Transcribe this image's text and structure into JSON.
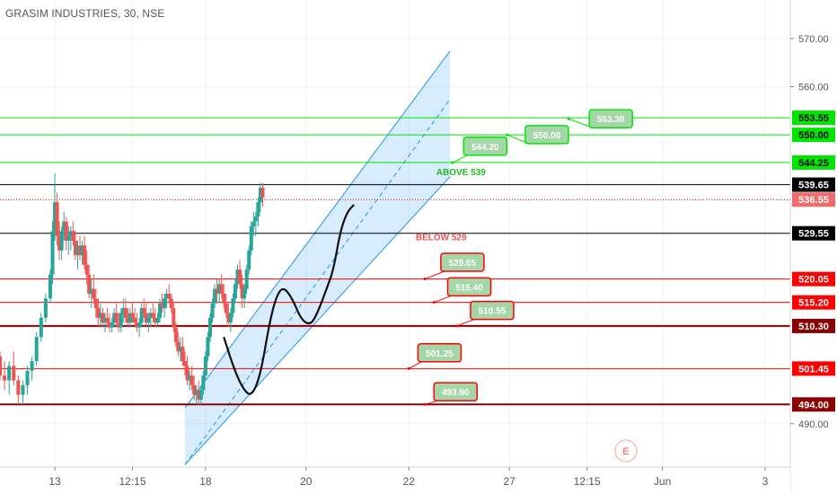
{
  "chart_data": {
    "type": "candlestick",
    "title": "GRASIM INDUSTRIES, 30, NSE",
    "ylim": [
      481,
      578
    ],
    "y_ticks": [
      490,
      560,
      570
    ],
    "x_ticks": [
      {
        "label": "13",
        "x": 24
      },
      {
        "label": "12:15",
        "x": 58
      },
      {
        "label": "18",
        "x": 90
      },
      {
        "label": "20",
        "x": 134
      },
      {
        "label": "22",
        "x": 179
      },
      {
        "label": "27",
        "x": 223
      },
      {
        "label": "12:15",
        "x": 257
      },
      {
        "label": "Jun",
        "x": 290
      },
      {
        "label": "3",
        "x": 335
      }
    ],
    "x_range": [
      0,
      346
    ],
    "colors": {
      "up": "#26a69a",
      "down": "#ef5350",
      "channel": "#2196f3",
      "green_line": "#00e600",
      "red_line": "#ff0000",
      "dark_red_line": "#8b0000",
      "label_fill": "#a5d6a7"
    },
    "horizontal_levels": [
      {
        "value": 553.55,
        "label": "553.55",
        "style": "green"
      },
      {
        "value": 550.0,
        "label": "550.00",
        "style": "green"
      },
      {
        "value": 544.25,
        "label": "544.25",
        "style": "green"
      },
      {
        "value": 539.65,
        "label": "539.65",
        "style": "black"
      },
      {
        "value": 536.55,
        "label": "536.55",
        "style": "dotted-red"
      },
      {
        "value": 529.55,
        "label": "529.55",
        "style": "black"
      },
      {
        "value": 520.05,
        "label": "520.05",
        "style": "red"
      },
      {
        "value": 515.2,
        "label": "515.20",
        "style": "red"
      },
      {
        "value": 510.3,
        "label": "510.30",
        "style": "darkred"
      },
      {
        "value": 501.45,
        "label": "501.45",
        "style": "red"
      },
      {
        "value": 494.0,
        "label": "494.00",
        "style": "darkred"
      }
    ],
    "text_annotations": [
      {
        "text": "ABOVE 539",
        "x": 191,
        "y": 541.6,
        "color": "#22bb22"
      },
      {
        "text": "BELOW 529",
        "x": 182,
        "y": 528.1,
        "color": "#ef5350"
      }
    ],
    "callouts": [
      {
        "label": "553.30",
        "x": 258,
        "y": 555.2,
        "anchor_x": 249,
        "anchor_y": 553.3,
        "border": "green"
      },
      {
        "label": "550.00",
        "x": 230,
        "y": 551.9,
        "anchor_x": 222,
        "anchor_y": 550.0,
        "border": "green"
      },
      {
        "label": "544.20",
        "x": 203,
        "y": 549.5,
        "anchor_x": 198,
        "anchor_y": 544.2,
        "border": "green"
      },
      {
        "label": "520.05",
        "x": 193,
        "y": 525.4,
        "anchor_x": 186,
        "anchor_y": 520.05,
        "border": "red"
      },
      {
        "label": "515.40",
        "x": 196,
        "y": 520.3,
        "anchor_x": 190,
        "anchor_y": 515.2,
        "border": "red"
      },
      {
        "label": "510.55",
        "x": 206,
        "y": 515.4,
        "anchor_x": 200,
        "anchor_y": 510.3,
        "border": "red"
      },
      {
        "label": "501.25",
        "x": 183,
        "y": 506.6,
        "anchor_x": 179,
        "anchor_y": 501.45,
        "border": "red"
      },
      {
        "label": "493.90",
        "x": 190,
        "y": 498.5,
        "anchor_x": 186,
        "anchor_y": 494.0,
        "border": "red"
      }
    ],
    "channel": {
      "lower_line": [
        [
          81,
          481.5
        ],
        [
          197,
          541.3
        ]
      ],
      "upper_line": [
        [
          81,
          493.3
        ],
        [
          197,
          567.4
        ]
      ],
      "mid_line": [
        [
          81,
          481.5
        ],
        [
          197,
          557.4
        ]
      ]
    },
    "trend_curve": [
      [
        98,
        508
      ],
      [
        102,
        502
      ],
      [
        106,
        497.5
      ],
      [
        110,
        495.5
      ],
      [
        114,
        500
      ],
      [
        118,
        511
      ],
      [
        121,
        516.5
      ],
      [
        124,
        518.5
      ],
      [
        128,
        516
      ],
      [
        132,
        511.5
      ],
      [
        136,
        510.5
      ],
      [
        139,
        513
      ],
      [
        143,
        518
      ],
      [
        146,
        522
      ],
      [
        149,
        530
      ],
      [
        152,
        534
      ],
      [
        155,
        535.5
      ]
    ],
    "candles": [
      [
        0,
        504,
        505,
        499,
        500
      ],
      [
        2,
        500,
        503,
        497,
        499
      ],
      [
        4,
        499,
        503,
        496,
        502
      ],
      [
        6,
        502,
        505,
        498,
        499
      ],
      [
        8,
        499,
        500,
        494,
        496
      ],
      [
        10,
        496,
        499,
        494,
        498
      ],
      [
        12,
        498,
        502,
        496,
        501
      ],
      [
        14,
        501,
        504,
        499,
        503
      ],
      [
        16,
        503,
        509,
        502,
        508
      ],
      [
        18,
        508,
        513,
        507,
        512
      ],
      [
        20,
        512,
        517,
        511,
        516
      ],
      [
        22,
        516,
        522,
        515,
        521
      ],
      [
        23,
        521,
        532,
        519,
        530
      ],
      [
        24,
        530,
        542,
        528,
        536
      ],
      [
        25,
        536,
        538,
        527,
        529
      ],
      [
        26,
        529,
        532,
        524,
        526
      ],
      [
        27,
        526,
        531,
        524,
        530
      ],
      [
        28,
        530,
        534,
        528,
        532
      ],
      [
        29,
        532,
        533,
        526,
        528
      ],
      [
        30,
        528,
        531,
        525,
        529
      ],
      [
        31,
        529,
        531,
        526,
        530
      ],
      [
        32,
        530,
        532,
        527,
        528
      ],
      [
        33,
        528,
        530,
        524,
        525
      ],
      [
        34,
        525,
        528,
        522,
        527
      ],
      [
        35,
        527,
        529,
        524,
        525
      ],
      [
        36,
        525,
        528,
        523,
        527
      ],
      [
        37,
        527,
        529,
        522,
        523
      ],
      [
        38,
        523,
        526,
        519,
        521
      ],
      [
        39,
        521,
        523,
        516,
        517
      ],
      [
        40,
        517,
        520,
        514,
        518
      ],
      [
        41,
        518,
        521,
        515,
        516
      ],
      [
        42,
        516,
        518,
        512,
        514
      ],
      [
        43,
        514,
        516,
        510,
        512
      ],
      [
        44,
        512,
        515,
        510,
        513
      ],
      [
        45,
        513,
        514,
        510,
        511
      ],
      [
        46,
        511,
        513,
        509,
        512
      ],
      [
        47,
        512,
        514,
        510,
        511
      ],
      [
        48,
        511,
        513,
        509,
        510
      ],
      [
        49,
        510,
        512,
        509,
        511
      ],
      [
        50,
        511,
        514,
        510,
        513
      ],
      [
        51,
        513,
        515,
        510,
        511
      ],
      [
        52,
        511,
        513,
        509,
        510
      ],
      [
        53,
        510,
        514,
        509,
        513
      ],
      [
        54,
        513,
        516,
        511,
        514
      ],
      [
        55,
        514,
        516,
        511,
        512
      ],
      [
        56,
        512,
        514,
        510,
        511
      ],
      [
        57,
        511,
        514,
        510,
        513
      ],
      [
        58,
        513,
        515,
        511,
        512
      ],
      [
        59,
        512,
        514,
        510,
        511
      ],
      [
        60,
        511,
        513,
        509,
        510
      ],
      [
        61,
        510,
        512,
        508,
        511
      ],
      [
        62,
        511,
        515,
        510,
        514
      ],
      [
        63,
        514,
        516,
        512,
        513
      ],
      [
        64,
        513,
        515,
        510,
        511
      ],
      [
        65,
        511,
        513,
        509,
        512
      ],
      [
        66,
        512,
        514,
        510,
        513
      ],
      [
        67,
        513,
        515,
        511,
        512
      ],
      [
        68,
        512,
        514,
        510,
        511
      ],
      [
        69,
        511,
        513,
        510,
        512
      ],
      [
        70,
        512,
        516,
        511,
        515
      ],
      [
        71,
        515,
        517,
        513,
        514
      ],
      [
        72,
        514,
        517,
        512,
        516
      ],
      [
        73,
        516,
        518,
        514,
        517
      ],
      [
        74,
        517,
        519,
        515,
        516
      ],
      [
        75,
        516,
        517,
        513,
        514
      ],
      [
        76,
        514,
        515,
        509,
        510
      ],
      [
        77,
        510,
        511,
        506,
        507
      ],
      [
        78,
        507,
        509,
        504,
        505
      ],
      [
        79,
        505,
        508,
        503,
        506
      ],
      [
        80,
        506,
        508,
        502,
        503
      ],
      [
        81,
        503,
        505,
        500,
        502
      ],
      [
        82,
        502,
        504,
        498,
        499
      ],
      [
        83,
        499,
        501,
        497,
        500
      ],
      [
        84,
        500,
        502,
        497,
        498
      ],
      [
        85,
        498,
        500,
        495,
        496
      ],
      [
        86,
        496,
        498,
        494,
        497
      ],
      [
        87,
        497,
        499,
        494,
        495
      ],
      [
        88,
        495,
        498,
        494,
        497
      ],
      [
        89,
        497,
        501,
        496,
        500
      ],
      [
        90,
        500,
        505,
        499,
        504
      ],
      [
        91,
        504,
        509,
        503,
        508
      ],
      [
        92,
        508,
        513,
        507,
        512
      ],
      [
        93,
        512,
        516,
        511,
        515
      ],
      [
        94,
        515,
        519,
        514,
        518
      ],
      [
        95,
        518,
        520,
        515,
        517
      ],
      [
        96,
        517,
        520,
        515,
        519
      ],
      [
        97,
        519,
        521,
        516,
        517
      ],
      [
        98,
        517,
        519,
        514,
        515
      ],
      [
        99,
        515,
        517,
        512,
        513
      ],
      [
        100,
        513,
        515,
        510,
        511
      ],
      [
        101,
        511,
        514,
        509,
        513
      ],
      [
        102,
        513,
        517,
        512,
        516
      ],
      [
        103,
        516,
        520,
        515,
        519
      ],
      [
        104,
        519,
        523,
        518,
        522
      ],
      [
        105,
        522,
        524,
        518,
        519
      ],
      [
        106,
        519,
        521,
        514,
        516
      ],
      [
        107,
        516,
        519,
        514,
        518
      ],
      [
        108,
        518,
        523,
        517,
        522
      ],
      [
        109,
        522,
        527,
        521,
        526
      ],
      [
        110,
        526,
        532,
        525,
        531
      ],
      [
        111,
        531,
        534,
        529,
        532
      ],
      [
        112,
        532,
        534,
        529,
        533
      ],
      [
        113,
        533,
        537,
        531,
        536
      ],
      [
        114,
        536,
        540,
        534,
        539
      ],
      [
        115,
        539,
        540,
        535,
        537
      ]
    ]
  },
  "watermark_letter": "E"
}
